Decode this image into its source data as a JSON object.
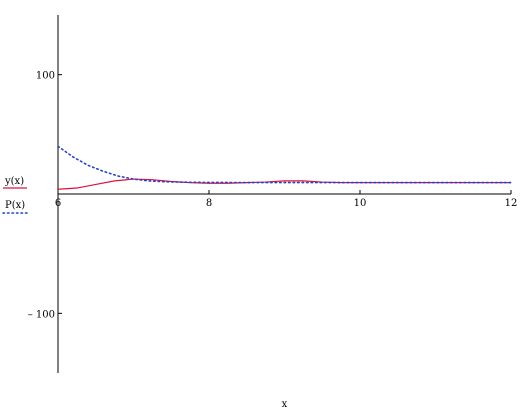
{
  "chart_data": {
    "type": "line",
    "xlabel": "x",
    "xlim": [
      6,
      12
    ],
    "ylim": [
      -150,
      150
    ],
    "x_ticks": [
      {
        "value": 6,
        "label": "6"
      },
      {
        "value": 8,
        "label": "8"
      },
      {
        "value": 10,
        "label": "10"
      },
      {
        "value": 12,
        "label": "12"
      }
    ],
    "y_ticks": [
      {
        "value": 100,
        "label": "100"
      },
      {
        "value": -100,
        "label": "– 100"
      }
    ],
    "grid": false,
    "legend_position": "left",
    "series": [
      {
        "name": "y(x)",
        "color": "#e0103a",
        "style": "solid",
        "x": [
          6.0,
          6.25,
          6.5,
          6.75,
          7.0,
          7.25,
          7.5,
          7.75,
          8.0,
          8.25,
          8.5,
          8.75,
          9.0,
          9.25,
          9.5,
          9.75,
          10.0,
          10.5,
          11.0,
          11.5,
          12.0
        ],
        "y": [
          4,
          5,
          8,
          11,
          12.5,
          12,
          10.5,
          9.5,
          9,
          9,
          9.5,
          10,
          11,
          11,
          10,
          9.5,
          9.5,
          9.5,
          9.5,
          9.5,
          9.5
        ]
      },
      {
        "name": "P(x)",
        "color": "#2244cc",
        "style": "dotted",
        "x": [
          6.0,
          6.2,
          6.4,
          6.6,
          6.8,
          7.0,
          7.2,
          7.4,
          7.6,
          7.8,
          8.0,
          8.5,
          9.0,
          9.5,
          10.0,
          10.5,
          11.0,
          11.5,
          12.0
        ],
        "y": [
          40,
          31,
          24,
          19,
          15,
          12.5,
          11,
          10.3,
          10,
          9.8,
          9.7,
          9.6,
          9.6,
          9.6,
          9.6,
          9.6,
          9.6,
          9.6,
          9.6
        ]
      }
    ]
  }
}
